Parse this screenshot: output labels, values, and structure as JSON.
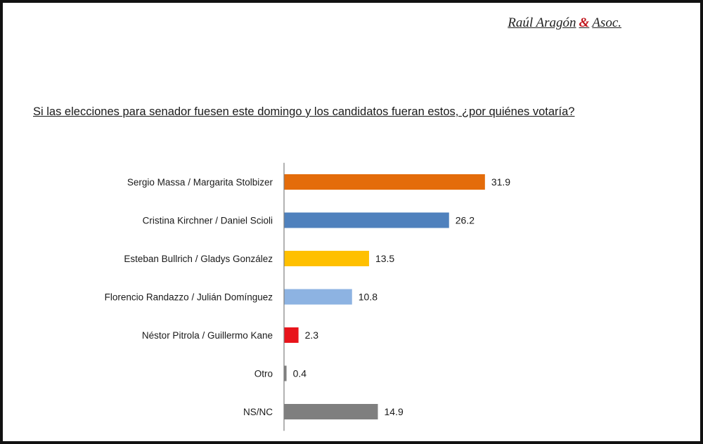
{
  "header": {
    "brand_before": "Raúl Aragón",
    "brand_amp": "&",
    "brand_after": "Asoc.",
    "brand_accent_color": "#c0141b"
  },
  "chart_data": {
    "type": "bar",
    "orientation": "horizontal",
    "title": "Si las elecciones para senador fuesen este domingo y los candidatos fueran estos, ¿por quiénes votaría?",
    "categories": [
      "Sergio Massa / Margarita Stolbizer",
      "Cristina Kirchner / Daniel Scioli",
      "Esteban Bullrich / Gladys González",
      "Florencio Randazzo / Julián Domínguez",
      "Néstor Pitrola / Guillermo Kane",
      "Otro",
      "NS/NC"
    ],
    "values": [
      31.9,
      26.2,
      13.5,
      10.8,
      2.3,
      0.4,
      14.9
    ],
    "value_labels": [
      "31.9",
      "26.2",
      "13.5",
      "10.8",
      "2.3",
      "0.4",
      "14.9"
    ],
    "colors": [
      "#e46c0a",
      "#4f81bd",
      "#ffc000",
      "#8db3e2",
      "#e8141b",
      "#7f7f7f",
      "#7f7f7f"
    ],
    "xlim": [
      0,
      35
    ],
    "grid": false,
    "legend": "none"
  }
}
